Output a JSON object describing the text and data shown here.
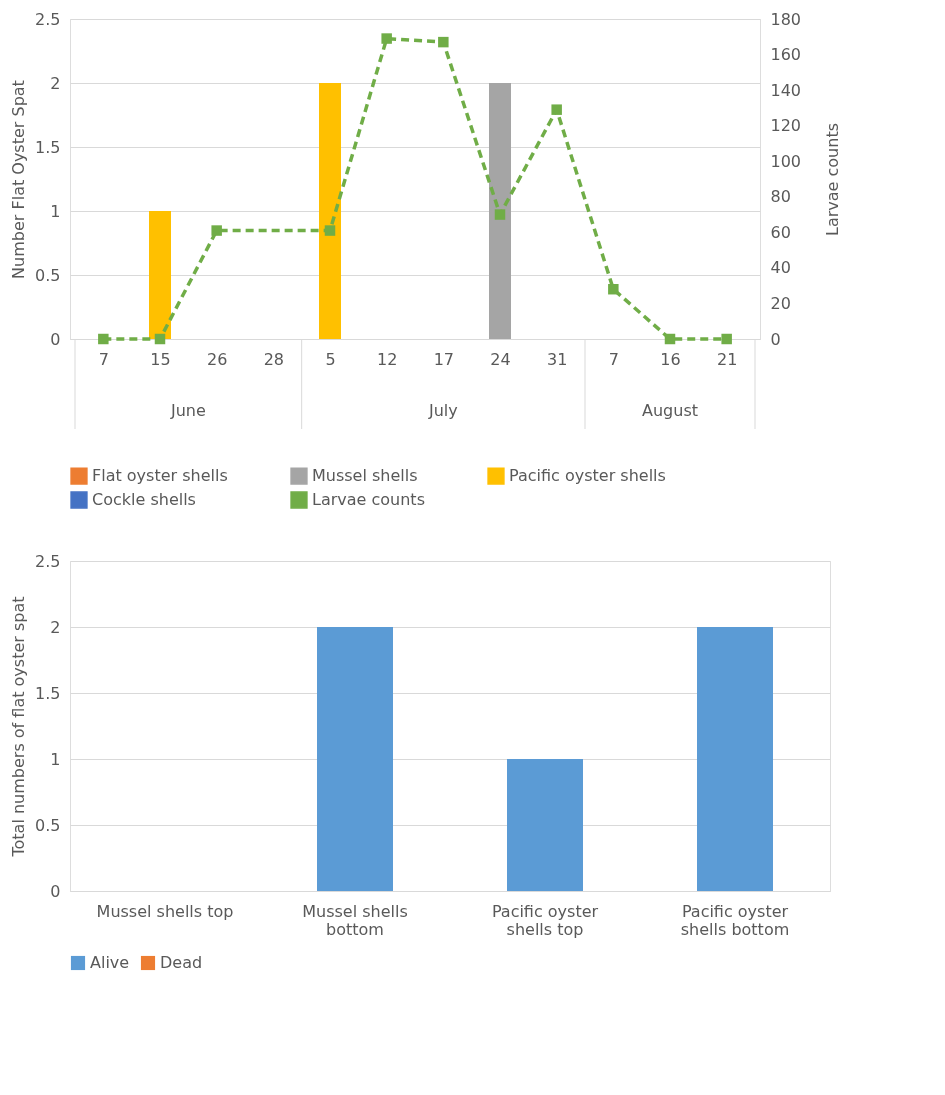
{
  "chart_data": [
    {
      "type": "bar",
      "ylabel": "Number Flat Oyster Spat",
      "y2label": "Larvae counts",
      "categories": [
        "7",
        "15",
        "26",
        "28",
        "5",
        "12",
        "17",
        "24",
        "31",
        "7",
        "16",
        "21"
      ],
      "annotations": [
        "June",
        "July",
        "August"
      ],
      "ylim": [
        0,
        2.5
      ],
      "yticks": [
        0,
        0.5,
        1,
        1.5,
        2,
        2.5
      ],
      "y2lim": [
        0,
        180
      ],
      "y2ticks": [
        0,
        20,
        40,
        60,
        80,
        100,
        120,
        140,
        160,
        180
      ],
      "grid": "y",
      "legend": "bottom",
      "series": [
        {
          "name": "Flat oyster shells",
          "color": "#ed7d31",
          "values": [
            null,
            null,
            null,
            null,
            null,
            null,
            null,
            null,
            null,
            null,
            null,
            null
          ]
        },
        {
          "name": "Mussel shells",
          "color": "#a5a5a5",
          "values": [
            null,
            null,
            null,
            null,
            null,
            null,
            null,
            2,
            null,
            null,
            null,
            null
          ]
        },
        {
          "name": "Pacific oyster shells",
          "color": "#ffc000",
          "values": [
            null,
            1,
            null,
            null,
            2,
            null,
            null,
            null,
            null,
            null,
            null,
            null
          ]
        },
        {
          "name": "Cockle shells",
          "color": "#4472c4",
          "values": [
            null,
            null,
            null,
            null,
            null,
            null,
            null,
            null,
            null,
            null,
            null,
            null
          ]
        },
        {
          "name": "Larvae counts",
          "color": "#70ad47",
          "type": "line",
          "axis": "y2",
          "marker": "square",
          "line_style": "dashed",
          "values": [
            0,
            0,
            61,
            null,
            61,
            169,
            167,
            70,
            129,
            28,
            0,
            0
          ]
        }
      ]
    },
    {
      "type": "bar",
      "ylabel": "Total numbers of flat oyster spat",
      "categories": [
        "Mussel shells top",
        "Mussel shells bottom",
        "Pacific oyster shells top",
        "Pacific oyster shells bottom"
      ],
      "ylim": [
        0,
        2.5
      ],
      "yticks": [
        0,
        0.5,
        1,
        1.5,
        2,
        2.5
      ],
      "grid": "y",
      "legend": "bottom",
      "stacked": true,
      "series": [
        {
          "name": "Alive",
          "color": "#5b9bd5",
          "values": [
            0,
            2,
            1,
            2
          ]
        },
        {
          "name": "Dead",
          "color": "#ed7d31",
          "values": [
            0,
            0,
            0,
            0
          ]
        }
      ]
    }
  ]
}
